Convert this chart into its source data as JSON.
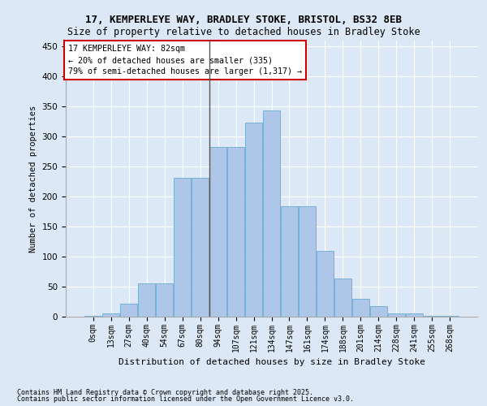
{
  "title": "17, KEMPERLEYE WAY, BRADLEY STOKE, BRISTOL, BS32 8EB",
  "subtitle": "Size of property relative to detached houses in Bradley Stoke",
  "xlabel": "Distribution of detached houses by size in Bradley Stoke",
  "ylabel": "Number of detached properties",
  "bar_labels": [
    "0sqm",
    "13sqm",
    "27sqm",
    "40sqm",
    "54sqm",
    "67sqm",
    "80sqm",
    "94sqm",
    "107sqm",
    "121sqm",
    "134sqm",
    "147sqm",
    "161sqm",
    "174sqm",
    "188sqm",
    "201sqm",
    "214sqm",
    "228sqm",
    "241sqm",
    "255sqm",
    "268sqm"
  ],
  "bar_values": [
    1,
    5,
    21,
    56,
    56,
    232,
    232,
    283,
    283,
    324,
    344,
    184,
    184,
    110,
    64,
    30,
    17,
    5,
    5,
    2,
    1
  ],
  "bar_color": "#aec6e8",
  "bar_edge_color": "#6aaad4",
  "vline_color": "#555555",
  "annotation_title": "17 KEMPERLEYE WAY: 82sqm",
  "annotation_line1": "← 20% of detached houses are smaller (335)",
  "annotation_line2": "79% of semi-detached houses are larger (1,317) →",
  "annotation_box_color": "#ffffff",
  "annotation_box_edge_color": "#cc0000",
  "ylim": [
    0,
    460
  ],
  "yticks": [
    0,
    50,
    100,
    150,
    200,
    250,
    300,
    350,
    400,
    450
  ],
  "footnote1": "Contains HM Land Registry data © Crown copyright and database right 2025.",
  "footnote2": "Contains public sector information licensed under the Open Government Licence v3.0.",
  "bg_color": "#dce8f5",
  "plot_bg_color": "#dce8f5"
}
